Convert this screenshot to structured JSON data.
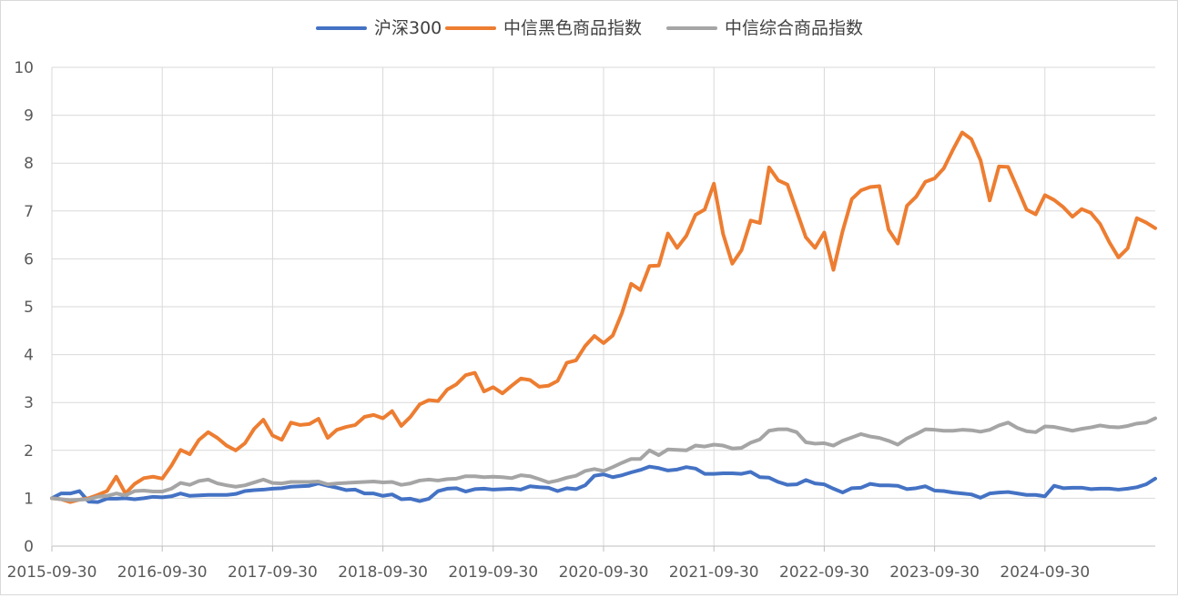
{
  "chart_data": {
    "type": "line",
    "title": "",
    "xlabel": "",
    "ylabel": "",
    "ylim": [
      0,
      10
    ],
    "yticks": [
      0,
      1,
      2,
      3,
      4,
      5,
      6,
      7,
      8,
      9,
      10
    ],
    "x_start": "2015-09-30",
    "x_end": "2025-07-31",
    "x_tick_labels": [
      "2015-09-30",
      "2016-09-30",
      "2017-09-30",
      "2018-09-30",
      "2019-09-30",
      "2020-09-30",
      "2021-09-30",
      "2022-09-30",
      "2023-09-30",
      "2024-09-30"
    ],
    "grid": true,
    "legend_position": "top-center",
    "x_interval": "monthly",
    "series": [
      {
        "name": "沪深300",
        "color": "#4472C4",
        "values": [
          1.0,
          1.1,
          1.1,
          1.15,
          0.93,
          0.92,
          0.99,
          0.99,
          1.0,
          0.98,
          1.0,
          1.03,
          1.02,
          1.04,
          1.1,
          1.05,
          1.06,
          1.07,
          1.07,
          1.07,
          1.09,
          1.15,
          1.17,
          1.18,
          1.2,
          1.21,
          1.24,
          1.25,
          1.26,
          1.31,
          1.26,
          1.22,
          1.17,
          1.18,
          1.1,
          1.1,
          1.05,
          1.08,
          0.98,
          0.99,
          0.94,
          0.99,
          1.15,
          1.2,
          1.21,
          1.14,
          1.19,
          1.2,
          1.18,
          1.19,
          1.2,
          1.18,
          1.25,
          1.23,
          1.22,
          1.15,
          1.21,
          1.19,
          1.27,
          1.47,
          1.5,
          1.44,
          1.48,
          1.54,
          1.59,
          1.66,
          1.63,
          1.58,
          1.6,
          1.65,
          1.62,
          1.51,
          1.51,
          1.52,
          1.52,
          1.51,
          1.55,
          1.44,
          1.43,
          1.34,
          1.28,
          1.29,
          1.38,
          1.31,
          1.29,
          1.2,
          1.12,
          1.21,
          1.22,
          1.3,
          1.27,
          1.27,
          1.26,
          1.19,
          1.21,
          1.25,
          1.16,
          1.15,
          1.12,
          1.1,
          1.08,
          1.01,
          1.1,
          1.12,
          1.13,
          1.1,
          1.07,
          1.07,
          1.04,
          1.26,
          1.21,
          1.22,
          1.22,
          1.19,
          1.2,
          1.2,
          1.18,
          1.2,
          1.23,
          1.29,
          1.41
        ]
      },
      {
        "name": "中信黑色商品指数",
        "color": "#ED7D31",
        "values": [
          1.0,
          0.98,
          0.92,
          0.97,
          1.0,
          1.07,
          1.15,
          1.45,
          1.1,
          1.3,
          1.42,
          1.45,
          1.41,
          1.68,
          2.01,
          1.92,
          2.22,
          2.38,
          2.26,
          2.1,
          2.0,
          2.15,
          2.45,
          2.64,
          2.31,
          2.22,
          2.58,
          2.53,
          2.55,
          2.66,
          2.26,
          2.43,
          2.49,
          2.53,
          2.7,
          2.74,
          2.67,
          2.82,
          2.51,
          2.7,
          2.96,
          3.05,
          3.03,
          3.27,
          3.38,
          3.57,
          3.62,
          3.23,
          3.32,
          3.19,
          3.35,
          3.5,
          3.47,
          3.33,
          3.35,
          3.45,
          3.83,
          3.88,
          4.18,
          4.39,
          4.24,
          4.4,
          4.87,
          5.48,
          5.35,
          5.85,
          5.86,
          6.53,
          6.23,
          6.48,
          6.92,
          7.03,
          7.57,
          6.52,
          5.9,
          6.18,
          6.8,
          6.75,
          7.91,
          7.64,
          7.55,
          7.0,
          6.45,
          6.23,
          6.55,
          5.77,
          6.58,
          7.25,
          7.43,
          7.5,
          7.52,
          6.61,
          6.32,
          7.11,
          7.3,
          7.61,
          7.68,
          7.89,
          8.28,
          8.64,
          8.5,
          8.06,
          7.22,
          7.93,
          7.92,
          7.48,
          7.03,
          6.93,
          7.33,
          7.23,
          7.08,
          6.88,
          7.04,
          6.96,
          6.73,
          6.35,
          6.03,
          6.22,
          6.85,
          6.76,
          6.64
        ]
      },
      {
        "name": "中信综合商品指数",
        "color": "#A5A5A5",
        "values": [
          1.0,
          0.98,
          0.96,
          0.97,
          0.98,
          1.03,
          1.05,
          1.1,
          1.06,
          1.15,
          1.16,
          1.14,
          1.14,
          1.2,
          1.32,
          1.28,
          1.36,
          1.39,
          1.31,
          1.27,
          1.24,
          1.27,
          1.33,
          1.39,
          1.32,
          1.31,
          1.34,
          1.34,
          1.34,
          1.35,
          1.29,
          1.31,
          1.32,
          1.33,
          1.34,
          1.35,
          1.33,
          1.34,
          1.28,
          1.31,
          1.37,
          1.39,
          1.37,
          1.4,
          1.41,
          1.46,
          1.46,
          1.44,
          1.45,
          1.44,
          1.42,
          1.48,
          1.46,
          1.4,
          1.33,
          1.37,
          1.43,
          1.47,
          1.57,
          1.61,
          1.57,
          1.65,
          1.74,
          1.82,
          1.82,
          2.0,
          1.9,
          2.02,
          2.01,
          2.0,
          2.1,
          2.08,
          2.12,
          2.1,
          2.04,
          2.05,
          2.16,
          2.23,
          2.41,
          2.44,
          2.44,
          2.38,
          2.17,
          2.14,
          2.15,
          2.1,
          2.2,
          2.27,
          2.34,
          2.29,
          2.26,
          2.2,
          2.12,
          2.25,
          2.34,
          2.44,
          2.43,
          2.41,
          2.41,
          2.43,
          2.42,
          2.39,
          2.43,
          2.52,
          2.58,
          2.47,
          2.4,
          2.38,
          2.5,
          2.49,
          2.45,
          2.41,
          2.45,
          2.48,
          2.52,
          2.49,
          2.48,
          2.51,
          2.56,
          2.58,
          2.67
        ]
      }
    ]
  }
}
